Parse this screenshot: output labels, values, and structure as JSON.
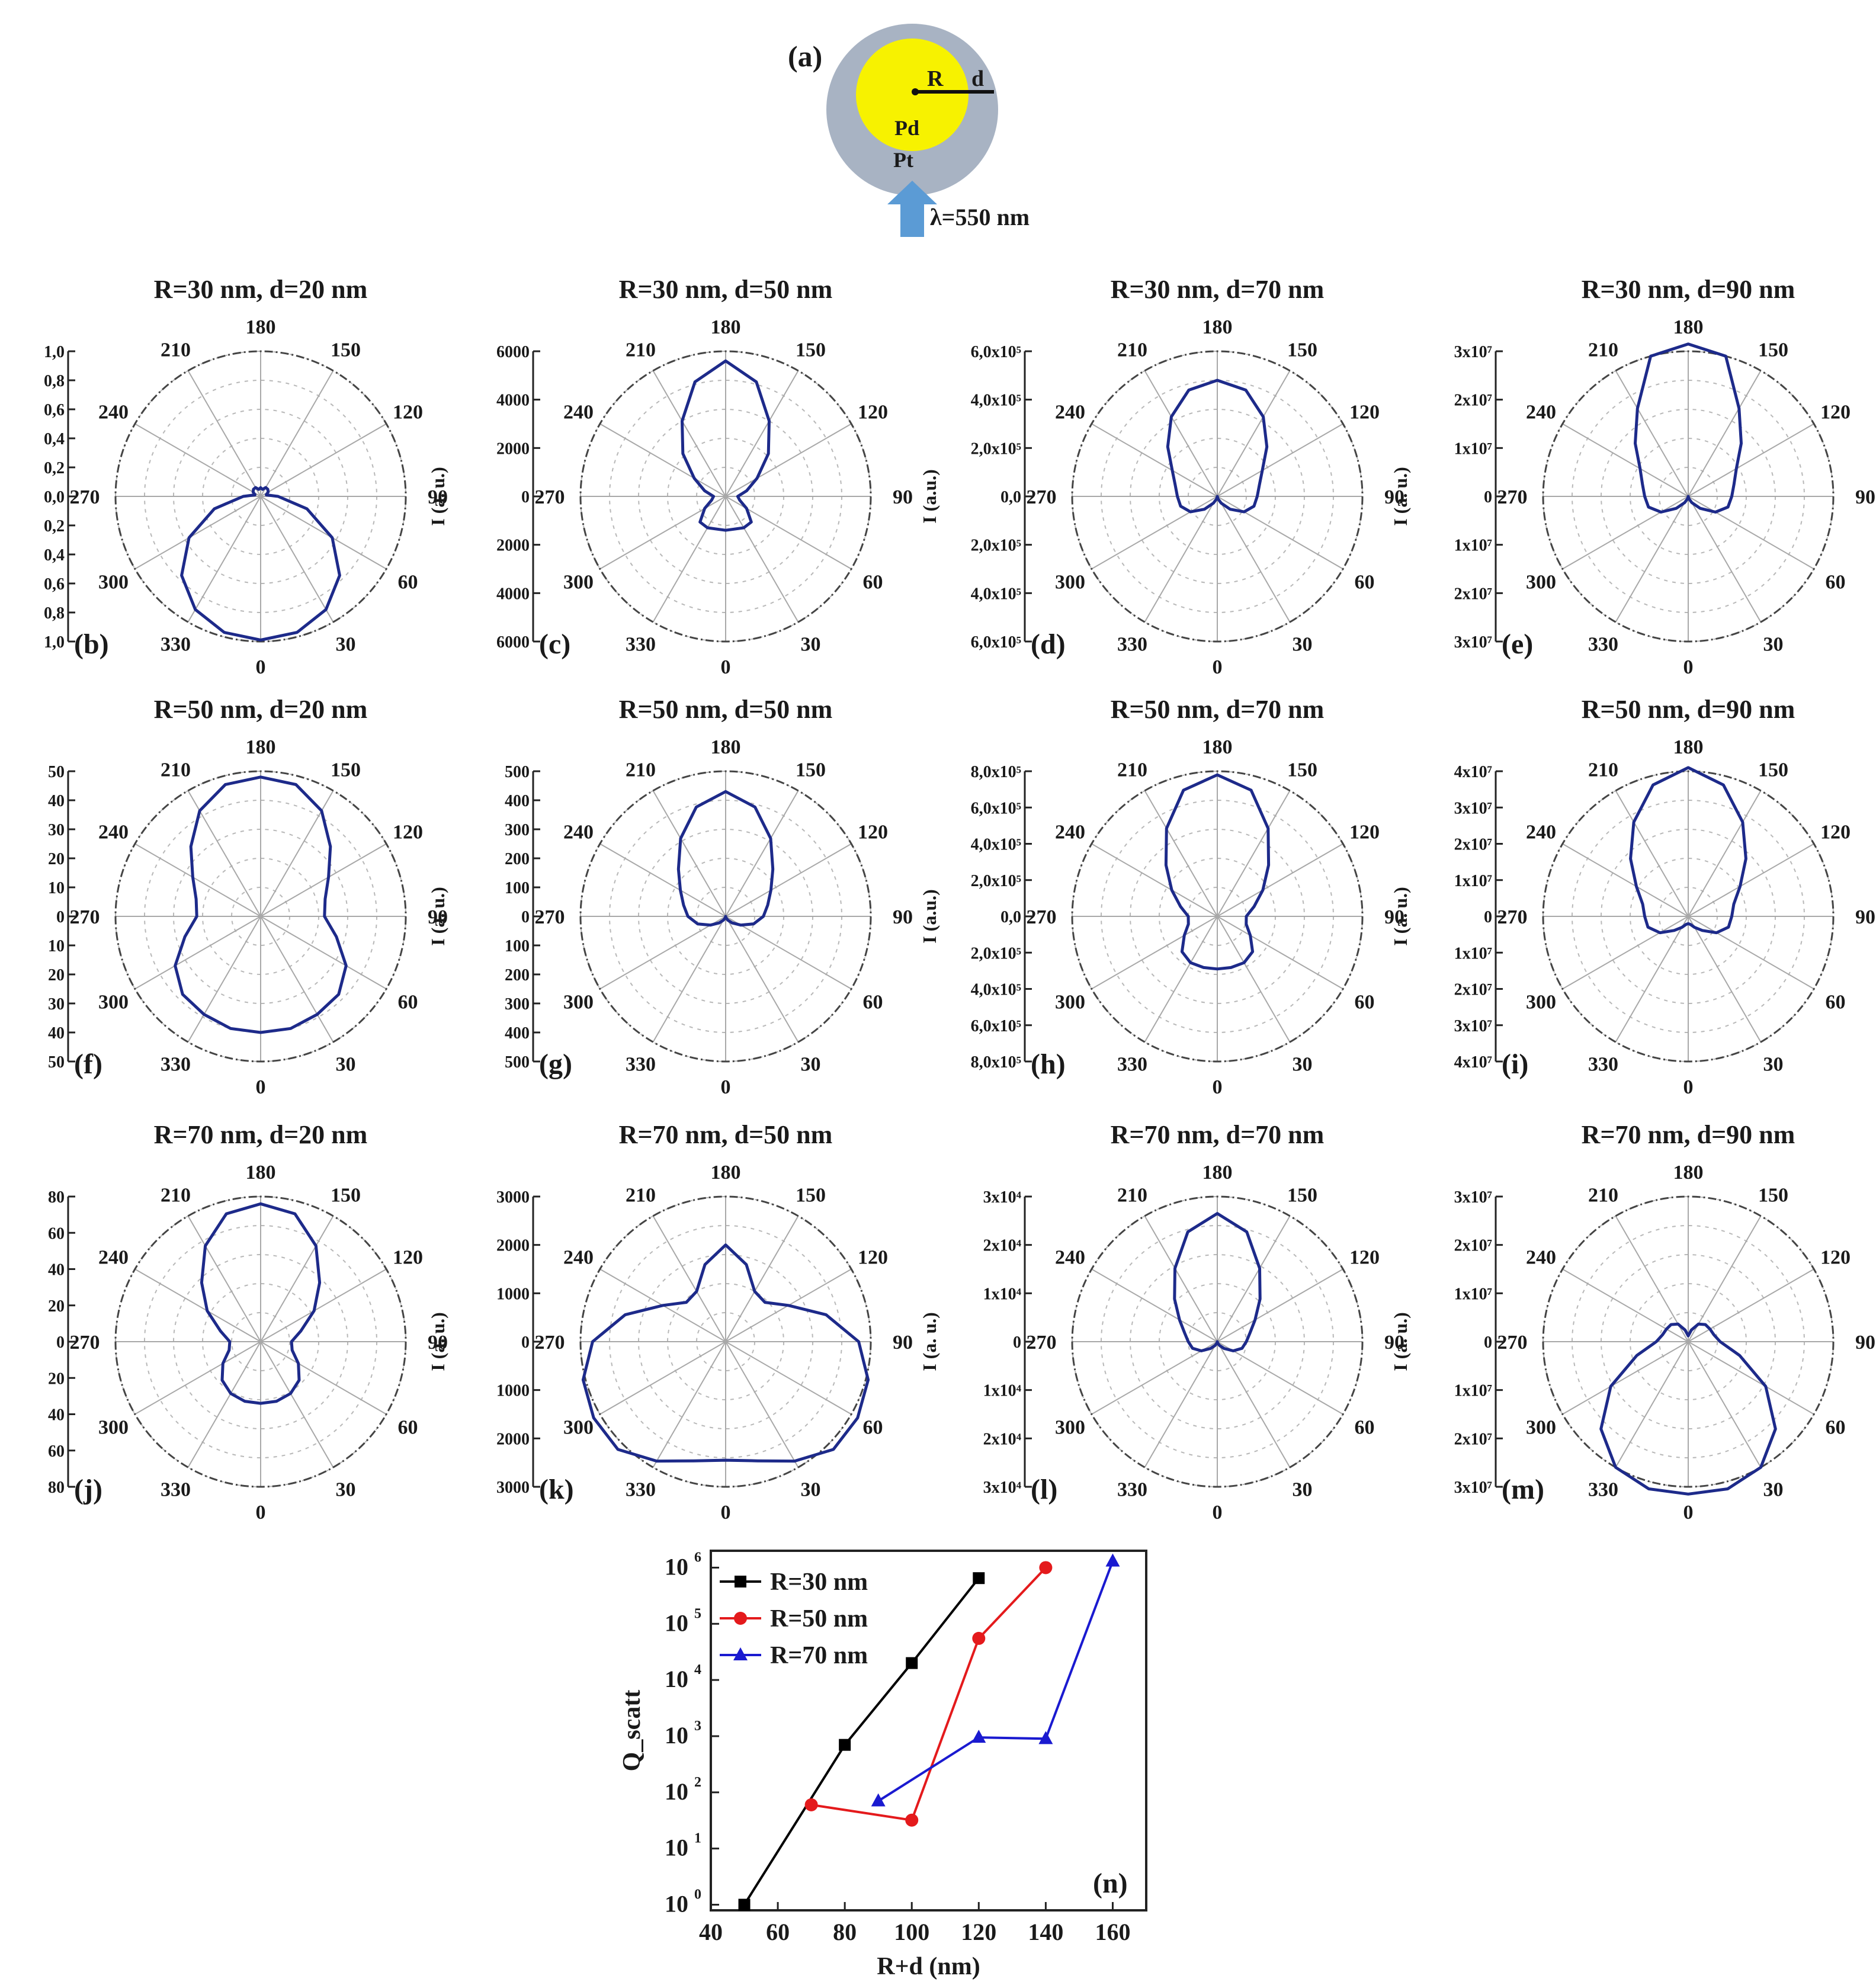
{
  "schematic": {
    "panel_label": "(a)",
    "label_R": "R",
    "label_d": "d",
    "core_label": "Pd",
    "shell_label": "Pt",
    "wavelength_label": "λ=550 nm",
    "colors": {
      "core": "#f7f200",
      "shell": "#a8b3c3",
      "arrow": "#5b9bd5"
    }
  },
  "chart_data": [
    {
      "type": "polar",
      "panel": "(b)",
      "title": "R=30 nm, d=20 nm",
      "ylabel": "I (a. u.)",
      "radial_ticks": [
        "1,0",
        "0,8",
        "0,6",
        "0,4",
        "0,2",
        "0,0",
        "0,2",
        "0,4",
        "0,6",
        "0,8",
        "1,0"
      ],
      "angle_labels": [
        "0",
        "30",
        "60",
        "90",
        "120",
        "150",
        "180",
        "210",
        "240",
        "270",
        "300",
        "330"
      ],
      "rmax": 1.0,
      "r": [
        0.99,
        0.97,
        0.9,
        0.77,
        0.57,
        0.33,
        0.12,
        0.04,
        0.06,
        0.07,
        0.07,
        0.05,
        0.06,
        0.05,
        0.07,
        0.07,
        0.06,
        0.04,
        0.12,
        0.33,
        0.57,
        0.77,
        0.9,
        0.97,
        0.99
      ]
    },
    {
      "type": "polar",
      "panel": "(c)",
      "title": "R=30 nm, d=50 nm",
      "ylabel": "I (a. u.)",
      "radial_ticks": [
        "6000",
        "4000",
        "2000",
        "0",
        "2000",
        "4000",
        "6000"
      ],
      "angle_labels": [
        "0",
        "30",
        "60",
        "90",
        "120",
        "150",
        "180",
        "210",
        "240",
        "270",
        "300",
        "330"
      ],
      "rmax": 6000,
      "r": [
        1400,
        1400,
        1500,
        1500,
        1000,
        600,
        500,
        900,
        1500,
        2500,
        3600,
        4900,
        5600,
        4900,
        3600,
        2500,
        1500,
        900,
        500,
        600,
        1000,
        1500,
        1500,
        1400,
        1400
      ]
    },
    {
      "type": "polar",
      "panel": "(d)",
      "title": "R=30 nm, d=70 nm",
      "ylabel": "I (a.u.)",
      "radial_ticks": [
        "6,0x10⁵",
        "4,0x10⁵",
        "2,0x10⁵",
        "0,0",
        "2,0x10⁵",
        "4,0x10⁵",
        "6,0x10⁵"
      ],
      "angle_labels": [
        "0",
        "30",
        "60",
        "90",
        "120",
        "150",
        "180",
        "210",
        "240",
        "270",
        "300",
        "330"
      ],
      "rmax": 600000,
      "r": [
        0,
        11000,
        32000,
        75000,
        128000,
        157000,
        165000,
        180000,
        215000,
        290000,
        380000,
        455000,
        480000,
        455000,
        380000,
        290000,
        215000,
        180000,
        165000,
        157000,
        128000,
        75000,
        32000,
        11000,
        0
      ]
    },
    {
      "type": "polar",
      "panel": "(e)",
      "title": "R=30 nm, d=90 nm",
      "ylabel": "I (a. u.)",
      "radial_ticks": [
        "3x10⁷",
        "2x10⁷",
        "1x10⁷",
        "0",
        "1x10⁷",
        "2x10⁷",
        "3x10⁷"
      ],
      "angle_labels": [
        "0",
        "30",
        "60",
        "90",
        "120",
        "150",
        "180",
        "210",
        "240",
        "270",
        "300",
        "330"
      ],
      "rmax": 30000000,
      "r": [
        0,
        500000,
        1500000,
        3500000,
        6500000,
        8500000,
        9000000,
        9800000,
        11500000,
        15500000,
        21000000,
        30000000,
        34000000,
        30000000,
        21000000,
        15500000,
        11500000,
        9800000,
        9000000,
        8500000,
        6500000,
        3500000,
        1500000,
        500000,
        0
      ]
    },
    {
      "type": "polar",
      "panel": "(f)",
      "title": "R=50 nm, d=20 nm",
      "ylabel": "I (a.u.)",
      "radial_ticks": [
        "50",
        "40",
        "30",
        "20",
        "10",
        "0",
        "10",
        "20",
        "30",
        "40",
        "50"
      ],
      "angle_labels": [
        "0",
        "30",
        "60",
        "90",
        "120",
        "150",
        "180",
        "210",
        "240",
        "270",
        "300",
        "330"
      ],
      "rmax": 50,
      "r": [
        40,
        40,
        39,
        38,
        34,
        27,
        22,
        23,
        27,
        34,
        42,
        47,
        48,
        47,
        42,
        34,
        27,
        23,
        22,
        27,
        34,
        38,
        39,
        40,
        40
      ]
    },
    {
      "type": "polar",
      "panel": "(g)",
      "title": "R=50 nm, d=50 nm",
      "ylabel": "I (a. u.)",
      "radial_ticks": [
        "500",
        "400",
        "300",
        "200",
        "100",
        "0",
        "100",
        "200",
        "300",
        "400",
        "500"
      ],
      "angle_labels": [
        "0",
        "30",
        "60",
        "90",
        "120",
        "150",
        "180",
        "210",
        "240",
        "270",
        "300",
        "330"
      ],
      "rmax": 500,
      "r": [
        0,
        5,
        15,
        32,
        60,
        100,
        130,
        150,
        180,
        230,
        310,
        390,
        430,
        390,
        310,
        230,
        180,
        150,
        130,
        100,
        60,
        32,
        15,
        5,
        0
      ]
    },
    {
      "type": "polar",
      "panel": "(h)",
      "title": "R=50 nm, d=70 nm",
      "ylabel": "I (a.u.)",
      "radial_ticks": [
        "8,0x10⁵",
        "6,0x10⁵",
        "4,0x10⁵",
        "2,0x10⁵",
        "0,0",
        "2,0x10⁵",
        "4,0x10⁵",
        "6,0x10⁵",
        "8,0x10⁵"
      ],
      "angle_labels": [
        "0",
        "30",
        "60",
        "90",
        "120",
        "150",
        "180",
        "210",
        "240",
        "270",
        "300",
        "330"
      ],
      "rmax": 800000,
      "r": [
        290000,
        292000,
        295000,
        275000,
        210000,
        165000,
        160000,
        210000,
        290000,
        400000,
        560000,
        720000,
        780000,
        720000,
        560000,
        400000,
        290000,
        210000,
        160000,
        165000,
        210000,
        275000,
        295000,
        292000,
        290000
      ]
    },
    {
      "type": "polar",
      "panel": "(i)",
      "title": "R=50 nm, d=90 nm",
      "ylabel": "I (a. u.)",
      "radial_ticks": [
        "4x10⁷",
        "3x10⁷",
        "2x10⁷",
        "1x10⁷",
        "0",
        "1x10⁷",
        "2x10⁷",
        "3x10⁷",
        "4x10⁷"
      ],
      "angle_labels": [
        "0",
        "30",
        "60",
        "90",
        "120",
        "150",
        "180",
        "210",
        "240",
        "270",
        "300",
        "330"
      ],
      "rmax": 40000000,
      "r": [
        2000000,
        2300000,
        3500000,
        5500000,
        9000000,
        11500000,
        12000000,
        13000000,
        16500000,
        22500000,
        30000000,
        37500000,
        41000000,
        37500000,
        30000000,
        22500000,
        16500000,
        13000000,
        12000000,
        11500000,
        9000000,
        5500000,
        3500000,
        2300000,
        2000000
      ]
    },
    {
      "type": "polar",
      "panel": "(j)",
      "title": "R=70 nm, d=20 nm",
      "ylabel": "I (a. u.)",
      "radial_ticks": [
        "80",
        "60",
        "40",
        "20",
        "0",
        "20",
        "40",
        "60",
        "80"
      ],
      "angle_labels": [
        "0",
        "30",
        "60",
        "90",
        "120",
        "150",
        "180",
        "210",
        "240",
        "270",
        "300",
        "330"
      ],
      "rmax": 80,
      "r": [
        34,
        34,
        33,
        30,
        24,
        18,
        17,
        23,
        34,
        46,
        61,
        73,
        76,
        73,
        61,
        46,
        34,
        23,
        17,
        18,
        24,
        30,
        33,
        34,
        34
      ]
    },
    {
      "type": "polar",
      "panel": "(k)",
      "title": "R=70 nm, d=50 nm",
      "ylabel": "I (a. u.)",
      "radial_ticks": [
        "3000",
        "2000",
        "1000",
        "0",
        "1000",
        "2000",
        "3000"
      ],
      "angle_labels": [
        "0",
        "30",
        "60",
        "90",
        "120",
        "150",
        "180",
        "210",
        "240",
        "270",
        "300",
        "330"
      ],
      "rmax": 3000,
      "r": [
        2450,
        2550,
        2850,
        3150,
        3150,
        3050,
        2750,
        2150,
        1500,
        1150,
        1200,
        1650,
        2000,
        1650,
        1200,
        1150,
        1500,
        2150,
        2750,
        3050,
        3150,
        3150,
        2850,
        2550,
        2450
      ]
    },
    {
      "type": "polar",
      "panel": "(l)",
      "title": "R=70 nm, d=70 nm",
      "ylabel": "I (a. u.)",
      "radial_ticks": [
        "3x10⁴",
        "2x10⁴",
        "1x10⁴",
        "0",
        "1x10⁴",
        "2x10⁴",
        "3x10⁴"
      ],
      "angle_labels": [
        "0",
        "30",
        "60",
        "90",
        "120",
        "150",
        "180",
        "210",
        "240",
        "270",
        "300",
        "330"
      ],
      "rmax": 30000,
      "r": [
        0,
        300,
        900,
        2000,
        3800,
        5300,
        6000,
        7000,
        9000,
        12500,
        17500,
        23500,
        26500,
        23500,
        17500,
        12500,
        9000,
        7000,
        6000,
        5300,
        3800,
        2000,
        900,
        300,
        0
      ]
    },
    {
      "type": "polar",
      "panel": "(m)",
      "title": "R=70 nm, d=90 nm",
      "ylabel": "I (a. u.)",
      "radial_ticks": [
        "3x10⁷",
        "2x10⁷",
        "1x10⁷",
        "0",
        "1x10⁷",
        "2x10⁷",
        "3x10⁷"
      ],
      "angle_labels": [
        "0",
        "30",
        "60",
        "90",
        "120",
        "150",
        "180",
        "210",
        "240",
        "270",
        "300",
        "330"
      ],
      "rmax": 30000000,
      "r": [
        32500000,
        32000000,
        30000000,
        25500000,
        18500000,
        11000000,
        6600000,
        5500000,
        5200000,
        5000000,
        4200000,
        2500000,
        1200000,
        2500000,
        4200000,
        5000000,
        5200000,
        5500000,
        6600000,
        11000000,
        18500000,
        25500000,
        30000000,
        32000000,
        32500000
      ]
    },
    {
      "type": "line",
      "panel": "(n)",
      "log_y": true,
      "xlabel": "R+d (nm)",
      "ylabel": "Q_scatt",
      "xlim": [
        40,
        170
      ],
      "ylim_exp": [
        -0.1,
        6.3
      ],
      "xticks": [
        "40",
        "60",
        "80",
        "100",
        "120",
        "140",
        "160"
      ],
      "yticks_exp": [
        "0",
        "1",
        "2",
        "3",
        "4",
        "5",
        "6"
      ],
      "legend_position": "top-left",
      "series": [
        {
          "name": "R=30 nm",
          "color": "#000000",
          "marker": "square",
          "x": [
            50,
            80,
            100,
            120
          ],
          "y": [
            1,
            700,
            20000,
            650000
          ]
        },
        {
          "name": "R=50 nm",
          "color": "#e41a1c",
          "marker": "circle",
          "x": [
            70,
            100,
            120,
            140
          ],
          "y": [
            60,
            32,
            55000,
            1000000
          ]
        },
        {
          "name": "R=70 nm",
          "color": "#1a1ad0",
          "marker": "triangle",
          "x": [
            90,
            120,
            140,
            160
          ],
          "y": [
            70,
            950,
            900,
            1300000
          ]
        }
      ]
    }
  ]
}
